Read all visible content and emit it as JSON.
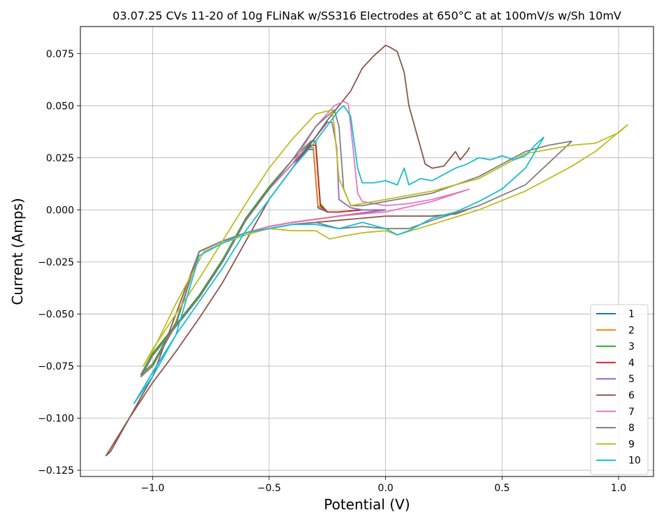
{
  "chart_data": {
    "type": "line",
    "title": "03.07.25 CVs 11-20 of 10g FLiNaK w/SS316 Electrodes at 650°C at at 100mV/s w/Sh 10mV",
    "xlabel": "Potential (V)",
    "ylabel": "Current (Amps)",
    "xlim": [
      -1.31,
      1.15
    ],
    "ylim": [
      -0.128,
      0.088
    ],
    "xticks": [
      -1.0,
      -0.5,
      0.0,
      0.5,
      1.0
    ],
    "xtick_labels": [
      "−1.0",
      "−0.5",
      "0.0",
      "0.5",
      "1.0"
    ],
    "yticks": [
      -0.125,
      -0.1,
      -0.075,
      -0.05,
      -0.025,
      0.0,
      0.025,
      0.05,
      0.075
    ],
    "ytick_labels": [
      "−0.125",
      "−0.100",
      "−0.075",
      "−0.050",
      "−0.025",
      "0.000",
      "0.025",
      "0.050",
      "0.075"
    ],
    "grid": true,
    "legend_position": "lower-right",
    "series": [
      {
        "name": "1",
        "color": "#1f77b4",
        "x": [
          0.0,
          -0.2,
          -0.4,
          -0.5,
          -0.6,
          -0.7,
          -0.8,
          -0.9,
          -1.0,
          -1.05,
          -1.0,
          -0.9,
          -0.8,
          -0.7,
          -0.6,
          -0.5,
          -0.4,
          -0.33,
          -0.31,
          -0.29,
          -0.25,
          -0.2,
          -0.1,
          0.0
        ],
        "y": [
          0.0,
          -0.003,
          -0.006,
          -0.008,
          -0.011,
          -0.015,
          -0.02,
          -0.055,
          -0.075,
          -0.08,
          -0.07,
          -0.056,
          -0.042,
          -0.025,
          -0.005,
          0.01,
          0.022,
          0.029,
          0.029,
          0.001,
          -0.001,
          -0.001,
          0.0,
          0.0
        ]
      },
      {
        "name": "2",
        "color": "#ff7f0e",
        "x": [
          0.0,
          -0.2,
          -0.4,
          -0.5,
          -0.6,
          -0.7,
          -0.8,
          -0.9,
          -1.0,
          -1.05,
          -1.0,
          -0.9,
          -0.8,
          -0.7,
          -0.6,
          -0.5,
          -0.4,
          -0.33,
          -0.31,
          -0.29,
          -0.25,
          -0.2,
          -0.1,
          0.0
        ],
        "y": [
          0.0,
          -0.003,
          -0.006,
          -0.008,
          -0.011,
          -0.015,
          -0.02,
          -0.055,
          -0.075,
          -0.08,
          -0.07,
          -0.056,
          -0.042,
          -0.025,
          -0.005,
          0.01,
          0.022,
          0.03,
          0.03,
          0.002,
          -0.001,
          -0.001,
          0.0,
          0.0
        ]
      },
      {
        "name": "3",
        "color": "#2ca02c",
        "x": [
          0.0,
          -0.2,
          -0.4,
          -0.5,
          -0.6,
          -0.7,
          -0.8,
          -0.9,
          -1.0,
          -1.05,
          -1.0,
          -0.9,
          -0.8,
          -0.7,
          -0.6,
          -0.5,
          -0.4,
          -0.32,
          -0.3,
          -0.28,
          -0.25,
          -0.2,
          -0.1,
          0.0
        ],
        "y": [
          0.0,
          -0.003,
          -0.006,
          -0.008,
          -0.011,
          -0.015,
          -0.02,
          -0.054,
          -0.074,
          -0.079,
          -0.069,
          -0.055,
          -0.041,
          -0.024,
          -0.004,
          0.011,
          0.024,
          0.033,
          0.033,
          0.003,
          -0.001,
          -0.001,
          0.0,
          0.0
        ]
      },
      {
        "name": "4",
        "color": "#d62728",
        "x": [
          0.0,
          -0.2,
          -0.4,
          -0.5,
          -0.6,
          -0.7,
          -0.8,
          -0.9,
          -1.0,
          -1.05,
          -1.0,
          -0.9,
          -0.8,
          -0.7,
          -0.6,
          -0.5,
          -0.4,
          -0.32,
          -0.3,
          -0.28,
          -0.25,
          -0.2,
          -0.1,
          0.0
        ],
        "y": [
          0.0,
          -0.003,
          -0.006,
          -0.008,
          -0.011,
          -0.015,
          -0.02,
          -0.055,
          -0.075,
          -0.08,
          -0.07,
          -0.056,
          -0.042,
          -0.025,
          -0.005,
          0.01,
          0.022,
          0.031,
          0.031,
          0.002,
          -0.001,
          -0.001,
          0.0,
          0.0
        ]
      },
      {
        "name": "5",
        "color": "#9467bd",
        "x": [
          0.0,
          -0.2,
          -0.4,
          -0.5,
          -0.6,
          -0.7,
          -0.8,
          -0.9,
          -1.0,
          -1.05,
          -1.0,
          -0.9,
          -0.8,
          -0.7,
          -0.6,
          -0.5,
          -0.4,
          -0.3,
          -0.25,
          -0.23,
          -0.21,
          -0.2,
          -0.15,
          -0.1,
          0.0
        ],
        "y": [
          0.0,
          -0.003,
          -0.006,
          -0.008,
          -0.011,
          -0.015,
          -0.02,
          -0.055,
          -0.075,
          -0.08,
          -0.07,
          -0.056,
          -0.042,
          -0.025,
          -0.005,
          0.01,
          0.022,
          0.035,
          0.042,
          0.042,
          0.03,
          0.005,
          0.001,
          0.0,
          0.0
        ]
      },
      {
        "name": "6",
        "color": "#8c564b",
        "x": [
          0.35,
          0.3,
          0.2,
          0.1,
          0.0,
          -0.2,
          -0.4,
          -0.5,
          -0.6,
          -0.7,
          -0.8,
          -0.9,
          -1.0,
          -1.1,
          -1.2,
          -1.18,
          -1.1,
          -1.0,
          -0.9,
          -0.8,
          -0.7,
          -0.6,
          -0.5,
          -0.4,
          -0.3,
          -0.25,
          -0.2,
          -0.15,
          -0.1,
          -0.05,
          0.0,
          0.02,
          0.05,
          0.08,
          0.1,
          0.13,
          0.15,
          0.17,
          0.2,
          0.25,
          0.3,
          0.32,
          0.35,
          0.36
        ],
        "y": [
          0.0,
          -0.002,
          -0.003,
          -0.003,
          -0.003,
          -0.005,
          -0.007,
          -0.009,
          -0.011,
          -0.015,
          -0.02,
          -0.05,
          -0.08,
          -0.1,
          -0.118,
          -0.116,
          -0.1,
          -0.083,
          -0.068,
          -0.052,
          -0.035,
          -0.015,
          0.005,
          0.02,
          0.035,
          0.043,
          0.05,
          0.057,
          0.068,
          0.074,
          0.079,
          0.078,
          0.076,
          0.066,
          0.05,
          0.038,
          0.03,
          0.022,
          0.02,
          0.021,
          0.028,
          0.024,
          0.028,
          0.03
        ]
      },
      {
        "name": "7",
        "color": "#e377c2",
        "x": [
          0.36,
          0.2,
          0.0,
          -0.2,
          -0.4,
          -0.5,
          -0.6,
          -0.7,
          -0.8,
          -0.9,
          -1.0,
          -1.05,
          -1.0,
          -0.9,
          -0.8,
          -0.7,
          -0.6,
          -0.5,
          -0.4,
          -0.3,
          -0.22,
          -0.18,
          -0.16,
          -0.14,
          -0.12,
          -0.1,
          -0.05,
          0.0,
          0.1,
          0.2,
          0.3,
          0.36
        ],
        "y": [
          0.01,
          0.004,
          -0.001,
          -0.003,
          -0.006,
          -0.008,
          -0.011,
          -0.015,
          -0.02,
          -0.055,
          -0.075,
          -0.08,
          -0.07,
          -0.056,
          -0.042,
          -0.025,
          -0.005,
          0.01,
          0.022,
          0.04,
          0.05,
          0.052,
          0.051,
          0.03,
          0.008,
          0.004,
          0.003,
          0.002,
          0.003,
          0.005,
          0.008,
          0.01
        ]
      },
      {
        "name": "8",
        "color": "#7f7f7f",
        "x": [
          0.8,
          0.6,
          0.4,
          0.2,
          0.1,
          0.0,
          -0.1,
          -0.2,
          -0.3,
          -0.4,
          -0.5,
          -0.6,
          -0.7,
          -0.8,
          -0.9,
          -1.0,
          -1.05,
          -1.0,
          -0.9,
          -0.8,
          -0.7,
          -0.6,
          -0.5,
          -0.4,
          -0.3,
          -0.22,
          -0.2,
          -0.18,
          -0.15,
          -0.1,
          0.0,
          0.2,
          0.4,
          0.6,
          0.7,
          0.8
        ],
        "y": [
          0.033,
          0.012,
          0.002,
          -0.005,
          -0.009,
          -0.009,
          -0.008,
          -0.009,
          -0.006,
          -0.007,
          -0.009,
          -0.011,
          -0.015,
          -0.02,
          -0.055,
          -0.075,
          -0.08,
          -0.07,
          -0.056,
          -0.042,
          -0.025,
          -0.005,
          0.01,
          0.024,
          0.04,
          0.048,
          0.04,
          0.01,
          0.002,
          0.002,
          0.004,
          0.008,
          0.016,
          0.028,
          0.031,
          0.033
        ]
      },
      {
        "name": "9",
        "color": "#bcbd22",
        "x": [
          1.04,
          0.9,
          0.8,
          0.6,
          0.4,
          0.2,
          0.05,
          0.0,
          -0.1,
          -0.2,
          -0.24,
          -0.3,
          -0.4,
          -0.5,
          -0.6,
          -0.7,
          -0.78,
          -0.9,
          -1.0,
          -1.04,
          -1.0,
          -0.9,
          -0.8,
          -0.7,
          -0.6,
          -0.5,
          -0.4,
          -0.3,
          -0.23,
          -0.22,
          -0.2,
          -0.15,
          -0.1,
          0.0,
          0.2,
          0.4,
          0.6,
          0.8,
          0.9,
          1.0,
          1.04
        ],
        "y": [
          0.041,
          0.028,
          0.021,
          0.009,
          0.0,
          -0.007,
          -0.012,
          -0.01,
          -0.011,
          -0.013,
          -0.014,
          -0.01,
          -0.01,
          -0.009,
          -0.012,
          -0.016,
          -0.02,
          -0.045,
          -0.068,
          -0.075,
          -0.067,
          -0.05,
          -0.033,
          -0.015,
          0.003,
          0.02,
          0.034,
          0.046,
          0.048,
          0.04,
          0.015,
          0.002,
          0.003,
          0.005,
          0.009,
          0.015,
          0.027,
          0.031,
          0.032,
          0.037,
          0.041
        ]
      },
      {
        "name": "10",
        "color": "#17becf",
        "x": [
          0.68,
          0.6,
          0.5,
          0.4,
          0.3,
          0.2,
          0.1,
          0.05,
          0.0,
          -0.1,
          -0.2,
          -0.3,
          -0.4,
          -0.5,
          -0.6,
          -0.7,
          -0.8,
          -0.9,
          -1.0,
          -1.08,
          -1.0,
          -0.9,
          -0.8,
          -0.7,
          -0.6,
          -0.5,
          -0.4,
          -0.3,
          -0.2,
          -0.18,
          -0.15,
          -0.12,
          -0.1,
          -0.05,
          0.0,
          0.05,
          0.08,
          0.1,
          0.15,
          0.2,
          0.3,
          0.35,
          0.4,
          0.45,
          0.5,
          0.55,
          0.6,
          0.65,
          0.68
        ],
        "y": [
          0.035,
          0.02,
          0.01,
          0.004,
          -0.001,
          -0.004,
          -0.01,
          -0.012,
          -0.009,
          -0.006,
          -0.009,
          -0.007,
          -0.007,
          -0.009,
          -0.011,
          -0.016,
          -0.022,
          -0.06,
          -0.08,
          -0.093,
          -0.078,
          -0.06,
          -0.044,
          -0.028,
          -0.01,
          0.005,
          0.02,
          0.033,
          0.048,
          0.05,
          0.045,
          0.02,
          0.013,
          0.013,
          0.014,
          0.012,
          0.02,
          0.012,
          0.015,
          0.014,
          0.02,
          0.022,
          0.025,
          0.024,
          0.026,
          0.024,
          0.026,
          0.032,
          0.035
        ]
      }
    ]
  }
}
